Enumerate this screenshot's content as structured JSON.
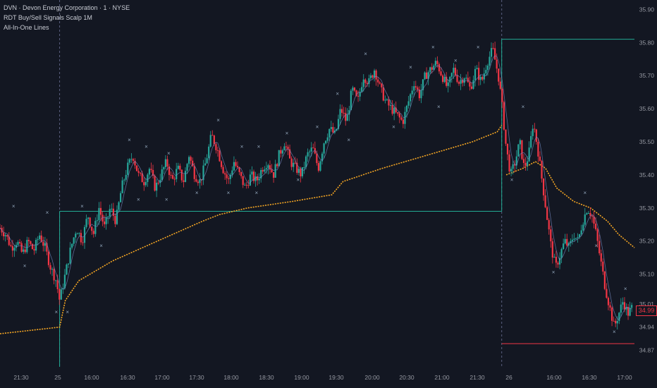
{
  "legend": {
    "line1": "DVN · Devon Energy Corporation · 1 · NYSE",
    "line2": "RDT Buy/Sell Signals Scalp 1M",
    "line3": "All-In-One Lines"
  },
  "colors": {
    "background": "#131722",
    "bull": "#26a69a",
    "bear": "#f23645",
    "vwap": "#f5a623",
    "level_line": "#22ab94",
    "low_line": "#f23645",
    "marker": "#8fa3b8",
    "axis_text": "#9598a1",
    "session_line": "#5b6080"
  },
  "chart_data": {
    "type": "candlestick",
    "xlabel": "",
    "ylabel": "",
    "ylim": [
      34.82,
      35.92
    ],
    "y_ticks": [
      "35.90",
      "35.80",
      "35.70",
      "35.60",
      "35.50",
      "35.40",
      "35.30",
      "35.20",
      "35.10",
      "35.01",
      "34.94",
      "34.87"
    ],
    "y_tick_values": [
      35.9,
      35.8,
      35.7,
      35.6,
      35.5,
      35.4,
      35.3,
      35.2,
      35.1,
      35.01,
      34.94,
      34.87
    ],
    "x_ticks": [
      "21:30",
      "25",
      "16:00",
      "16:30",
      "17:00",
      "17:30",
      "18:00",
      "18:30",
      "19:00",
      "19:30",
      "20:00",
      "20:30",
      "21:00",
      "21:30",
      "26",
      "16:00",
      "16:30",
      "17:00"
    ],
    "last_price": "34.99",
    "grid": false,
    "price_path": [
      [
        0,
        35.24
      ],
      [
        0.5,
        35.22
      ],
      [
        1,
        35.18
      ],
      [
        1.5,
        35.2
      ],
      [
        2,
        35.16
      ],
      [
        2.5,
        35.2
      ],
      [
        3,
        35.17
      ],
      [
        3.5,
        35.22
      ],
      [
        4,
        35.18
      ],
      [
        4.5,
        35.12
      ],
      [
        5,
        35.08
      ],
      [
        5.3,
        35.02
      ],
      [
        5.8,
        35.1
      ],
      [
        6.3,
        35.18
      ],
      [
        6.8,
        35.24
      ],
      [
        7.3,
        35.2
      ],
      [
        7.8,
        35.28
      ],
      [
        8.3,
        35.22
      ],
      [
        8.8,
        35.3
      ],
      [
        9.3,
        35.24
      ],
      [
        9.8,
        35.3
      ],
      [
        10.3,
        35.26
      ],
      [
        10.8,
        35.36
      ],
      [
        11.3,
        35.42
      ],
      [
        11.8,
        35.46
      ],
      [
        12.3,
        35.4
      ],
      [
        12.8,
        35.38
      ],
      [
        13.3,
        35.42
      ],
      [
        13.8,
        35.36
      ],
      [
        14.3,
        35.4
      ],
      [
        14.8,
        35.44
      ],
      [
        15.3,
        35.38
      ],
      [
        15.8,
        35.42
      ],
      [
        16.3,
        35.38
      ],
      [
        16.8,
        35.46
      ],
      [
        17.3,
        35.4
      ],
      [
        17.8,
        35.38
      ],
      [
        18.3,
        35.44
      ],
      [
        18.8,
        35.52
      ],
      [
        19.3,
        35.48
      ],
      [
        19.8,
        35.42
      ],
      [
        20.3,
        35.38
      ],
      [
        20.8,
        35.44
      ],
      [
        21.3,
        35.4
      ],
      [
        21.8,
        35.36
      ],
      [
        22.3,
        35.4
      ],
      [
        22.8,
        35.38
      ],
      [
        23.3,
        35.42
      ],
      [
        23.8,
        35.44
      ],
      [
        24.3,
        35.4
      ],
      [
        24.8,
        35.46
      ],
      [
        25.3,
        35.5
      ],
      [
        25.8,
        35.44
      ],
      [
        26.3,
        35.42
      ],
      [
        26.8,
        35.4
      ],
      [
        27.3,
        35.46
      ],
      [
        27.8,
        35.48
      ],
      [
        28.3,
        35.42
      ],
      [
        28.8,
        35.5
      ],
      [
        29.3,
        35.54
      ],
      [
        29.8,
        35.52
      ],
      [
        30.3,
        35.6
      ],
      [
        30.8,
        35.56
      ],
      [
        31.3,
        35.66
      ],
      [
        31.8,
        35.62
      ],
      [
        32.3,
        35.7
      ],
      [
        32.8,
        35.68
      ],
      [
        33.3,
        35.72
      ],
      [
        33.8,
        35.66
      ],
      [
        34.3,
        35.62
      ],
      [
        34.8,
        35.6
      ],
      [
        35.3,
        35.58
      ],
      [
        35.8,
        35.56
      ],
      [
        36.3,
        35.62
      ],
      [
        36.8,
        35.68
      ],
      [
        37.3,
        35.64
      ],
      [
        37.8,
        35.7
      ],
      [
        38.3,
        35.72
      ],
      [
        38.8,
        35.74
      ],
      [
        39.3,
        35.7
      ],
      [
        39.8,
        35.66
      ],
      [
        40.3,
        35.72
      ],
      [
        40.8,
        35.68
      ],
      [
        41.3,
        35.7
      ],
      [
        41.8,
        35.66
      ],
      [
        42.3,
        35.72
      ],
      [
        42.8,
        35.68
      ],
      [
        43.3,
        35.74
      ],
      [
        43.8,
        35.78
      ],
      [
        44.3,
        35.7
      ],
      [
        44.6,
        35.62
      ],
      [
        45.0,
        35.48
      ],
      [
        45.4,
        35.4
      ],
      [
        45.8,
        35.44
      ],
      [
        46.2,
        35.5
      ],
      [
        46.6,
        35.42
      ],
      [
        47.0,
        35.46
      ],
      [
        47.4,
        35.56
      ],
      [
        47.8,
        35.48
      ],
      [
        48.2,
        35.38
      ],
      [
        48.6,
        35.28
      ],
      [
        49.0,
        35.18
      ],
      [
        49.4,
        35.12
      ],
      [
        49.8,
        35.16
      ],
      [
        50.2,
        35.2
      ],
      [
        50.6,
        35.18
      ],
      [
        51.0,
        35.22
      ],
      [
        51.4,
        35.2
      ],
      [
        51.8,
        35.26
      ],
      [
        52.2,
        35.3
      ],
      [
        52.6,
        35.28
      ],
      [
        53.0,
        35.22
      ],
      [
        53.4,
        35.14
      ],
      [
        53.8,
        35.06
      ],
      [
        54.2,
        35.0
      ],
      [
        54.6,
        34.94
      ],
      [
        55.0,
        34.98
      ],
      [
        55.4,
        35.02
      ],
      [
        55.8,
        34.98
      ],
      [
        56.2,
        35.0
      ]
    ],
    "vwap_session1": [
      [
        0,
        34.92
      ],
      [
        5.3,
        34.94
      ],
      [
        5.8,
        35.02
      ],
      [
        7.0,
        35.08
      ],
      [
        10.0,
        35.14
      ],
      [
        14.0,
        35.2
      ],
      [
        18.0,
        35.26
      ],
      [
        19.5,
        35.28
      ],
      [
        22.0,
        35.3
      ],
      [
        26.0,
        35.32
      ],
      [
        29.5,
        35.34
      ],
      [
        30.5,
        35.38
      ],
      [
        34.0,
        35.42
      ],
      [
        38.0,
        35.46
      ],
      [
        42.0,
        35.5
      ],
      [
        44.2,
        35.53
      ],
      [
        44.6,
        35.55
      ]
    ],
    "vwap_session2": [
      [
        45.0,
        35.4
      ],
      [
        46.5,
        35.42
      ],
      [
        47.6,
        35.44
      ],
      [
        48.5,
        35.42
      ],
      [
        49.5,
        35.36
      ],
      [
        51.0,
        35.32
      ],
      [
        52.5,
        35.3
      ],
      [
        54.0,
        35.26
      ],
      [
        55.0,
        35.22
      ],
      [
        56.4,
        35.18
      ]
    ],
    "level_lines": [
      {
        "from": 5.3,
        "to": 44.6,
        "value": 35.29,
        "color": "level_line"
      },
      {
        "from": 44.6,
        "to": 56.4,
        "value": 35.81,
        "color": "level_line"
      },
      {
        "from": 44.6,
        "to": 56.4,
        "value": 34.89,
        "color": "low_line"
      }
    ],
    "session_breaks": [
      5.3,
      44.6
    ],
    "sell_markers": [
      [
        1.2,
        35.3
      ],
      [
        4.2,
        35.28
      ],
      [
        7.3,
        35.3
      ],
      [
        11.5,
        35.5
      ],
      [
        13.0,
        35.48
      ],
      [
        15.0,
        35.46
      ],
      [
        19.4,
        35.56
      ],
      [
        21.5,
        35.48
      ],
      [
        23.0,
        35.48
      ],
      [
        25.5,
        35.52
      ],
      [
        28.2,
        35.54
      ],
      [
        30.0,
        35.64
      ],
      [
        32.5,
        35.76
      ],
      [
        36.5,
        35.72
      ],
      [
        38.5,
        35.78
      ],
      [
        40.5,
        35.74
      ],
      [
        42.5,
        35.78
      ],
      [
        46.5,
        35.6
      ],
      [
        52.0,
        35.34
      ],
      [
        55.6,
        35.05
      ]
    ],
    "buy_markers": [
      [
        2.2,
        35.12
      ],
      [
        5.0,
        34.98
      ],
      [
        6.0,
        34.98
      ],
      [
        9.0,
        35.18
      ],
      [
        12.3,
        35.32
      ],
      [
        14.8,
        35.32
      ],
      [
        17.5,
        35.34
      ],
      [
        20.3,
        35.34
      ],
      [
        22.8,
        35.34
      ],
      [
        26.5,
        35.38
      ],
      [
        31.0,
        35.5
      ],
      [
        35.0,
        35.54
      ],
      [
        39.0,
        35.6
      ],
      [
        45.5,
        35.38
      ],
      [
        49.2,
        35.1
      ],
      [
        53.0,
        35.18
      ],
      [
        54.6,
        34.92
      ]
    ]
  }
}
